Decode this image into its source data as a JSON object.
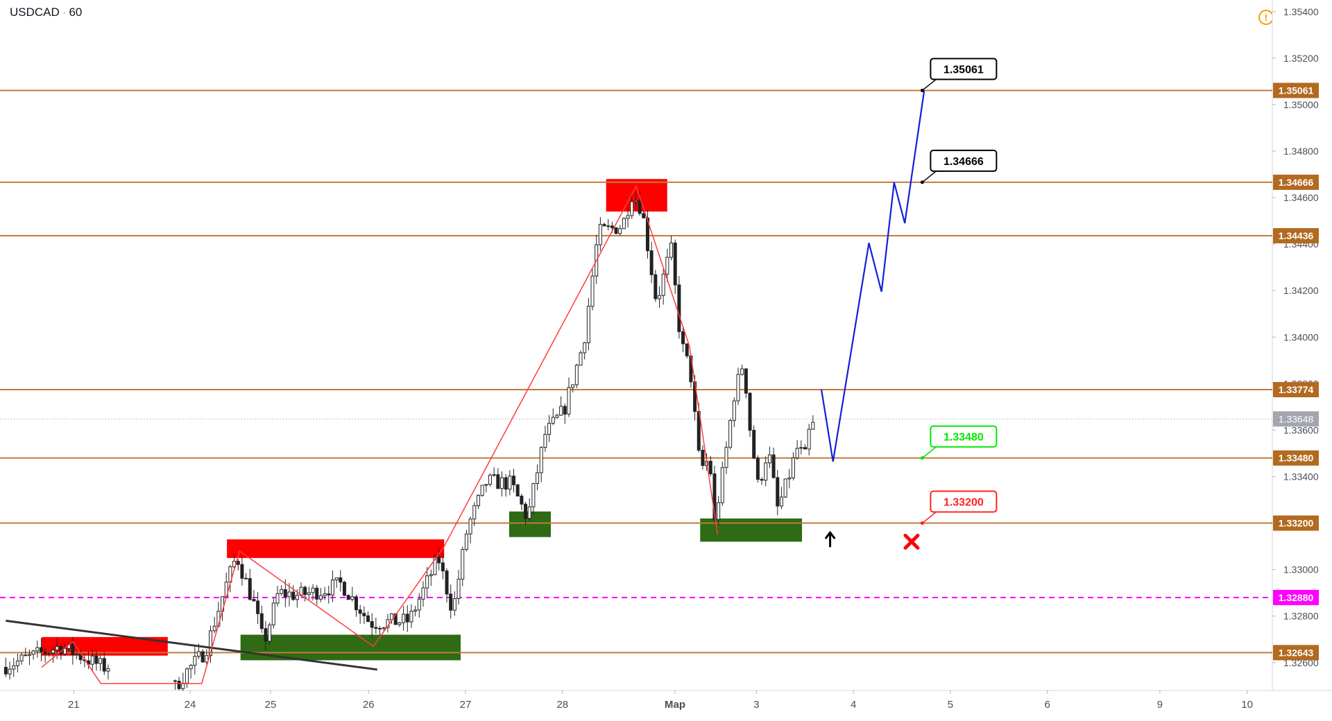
{
  "header": {
    "symbol": "USDCAD",
    "separator": "·",
    "interval": "60"
  },
  "icons": {
    "alert": "warning-icon",
    "settings": "gear-icon"
  },
  "colors": {
    "level_line": "#c07a3c",
    "level_tag": "#b26a1f",
    "magenta_line": "#ff00ff",
    "up_candle": "#ffffff",
    "down_candle": "#222222",
    "zig_zag": "#ff3b3b",
    "forecast": "#1020d8",
    "supply_zone": "#ff0000",
    "demand_zone": "#2e6b14",
    "trendline": "#333333"
  },
  "chart_data": {
    "type": "candlestick",
    "symbol": "USDCAD",
    "interval": "60",
    "ylim": [
      1.3248,
      1.3545
    ],
    "y_ticks": [
      "1.35400",
      "1.35200",
      "1.35000",
      "1.34800",
      "1.34600",
      "1.34400",
      "1.34200",
      "1.34000",
      "1.33800",
      "1.33600",
      "1.33400",
      "1.33200",
      "1.33000",
      "1.32800",
      "1.32600"
    ],
    "x_ticks": [
      {
        "label": "21",
        "t": 0.7
      },
      {
        "label": "24",
        "t": 1.9
      },
      {
        "label": "25",
        "t": 2.73
      },
      {
        "label": "26",
        "t": 3.74
      },
      {
        "label": "27",
        "t": 4.74
      },
      {
        "label": "28",
        "t": 5.74
      },
      {
        "label": "Мар",
        "t": 6.9
      },
      {
        "label": "3",
        "t": 7.74
      },
      {
        "label": "4",
        "t": 8.74
      },
      {
        "label": "5",
        "t": 9.74
      },
      {
        "label": "6",
        "t": 10.74
      },
      {
        "label": "9",
        "t": 11.9
      },
      {
        "label": "10",
        "t": 12.8
      }
    ],
    "t_range": [
      -0.06,
      13.06
    ],
    "levels": [
      {
        "value": 1.35061,
        "label": "1.35061",
        "style": "solid"
      },
      {
        "value": 1.34666,
        "label": "1.34666",
        "style": "solid"
      },
      {
        "value": 1.34436,
        "label": "1.34436",
        "style": "solid"
      },
      {
        "value": 1.33774,
        "label": "1.33774",
        "style": "solid"
      },
      {
        "value": 1.3348,
        "label": "1.33480",
        "style": "solid"
      },
      {
        "value": 1.332,
        "label": "1.33200",
        "style": "solid"
      },
      {
        "value": 1.3288,
        "label": "1.32880",
        "style": "dashed-magenta"
      },
      {
        "value": 1.32643,
        "label": "1.32643",
        "style": "solid"
      }
    ],
    "current_price": {
      "value": 1.33648,
      "label": "1.33648"
    },
    "callouts": [
      {
        "label": "1.35061",
        "t": 9.45,
        "value": 1.35061,
        "color": "#000000"
      },
      {
        "label": "1.34666",
        "t": 9.45,
        "value": 1.34666,
        "color": "#000000"
      },
      {
        "label": "1.33480",
        "t": 9.45,
        "value": 1.3348,
        "color": "#00e600"
      },
      {
        "label": "1.33200",
        "t": 9.45,
        "value": 1.332,
        "color": "#ff2020"
      }
    ],
    "supply_zones": [
      {
        "t0": 0.37,
        "t1": 1.67,
        "v0": 1.3263,
        "v1": 1.3271
      },
      {
        "t0": 2.28,
        "t1": 4.52,
        "v0": 1.3305,
        "v1": 1.3313
      },
      {
        "t0": 6.19,
        "t1": 6.82,
        "v0": 1.3454,
        "v1": 1.3468
      }
    ],
    "demand_zones": [
      {
        "t0": 2.42,
        "t1": 4.69,
        "v0": 1.3261,
        "v1": 1.3272
      },
      {
        "t0": 5.19,
        "t1": 5.62,
        "v0": 1.3314,
        "v1": 1.3325
      },
      {
        "t0": 7.16,
        "t1": 8.21,
        "v0": 1.3312,
        "v1": 1.3322
      }
    ],
    "trendline": [
      {
        "t": 0.0,
        "v": 1.3278
      },
      {
        "t": 3.83,
        "v": 1.3257
      }
    ],
    "zigzag": [
      {
        "t": 0.37,
        "v": 1.3258
      },
      {
        "t": 0.69,
        "v": 1.3269
      },
      {
        "t": 0.98,
        "v": 1.3251
      },
      {
        "t": 2.02,
        "v": 1.3251
      },
      {
        "t": 2.41,
        "v": 1.3308
      },
      {
        "t": 3.79,
        "v": 1.3267
      },
      {
        "t": 4.52,
        "v": 1.331
      },
      {
        "t": 6.5,
        "v": 1.3465
      },
      {
        "t": 7.05,
        "v": 1.3396
      },
      {
        "t": 7.34,
        "v": 1.3315
      }
    ],
    "forecast_path": [
      {
        "t": 8.41,
        "v": 1.33775
      },
      {
        "t": 8.53,
        "v": 1.33465
      },
      {
        "t": 8.9,
        "v": 1.34405
      },
      {
        "t": 9.03,
        "v": 1.34195
      },
      {
        "t": 9.16,
        "v": 1.34665
      },
      {
        "t": 9.27,
        "v": 1.3449
      },
      {
        "t": 9.47,
        "v": 1.3506
      }
    ],
    "markers": [
      {
        "type": "up-arrow",
        "t": 8.5,
        "v": 1.3313,
        "color": "#000000"
      },
      {
        "type": "cross",
        "t": 9.34,
        "v": 1.3312,
        "color": "#ff0000"
      }
    ],
    "anchors": [
      {
        "t": 0.0,
        "v": 1.3258
      },
      {
        "t": 0.6,
        "v": 1.3267
      },
      {
        "t": 1.05,
        "v": 1.3258
      },
      {
        "t": 1.5,
        "v": 1.3264
      },
      {
        "t": 1.78,
        "v": 1.3249
      },
      {
        "t": 1.9,
        "v": 1.3256
      },
      {
        "t": 2.1,
        "v": 1.3265
      },
      {
        "t": 2.3,
        "v": 1.3292
      },
      {
        "t": 2.42,
        "v": 1.3306
      },
      {
        "t": 2.6,
        "v": 1.3285
      },
      {
        "t": 2.7,
        "v": 1.3268
      },
      {
        "t": 2.85,
        "v": 1.329
      },
      {
        "t": 3.05,
        "v": 1.3289
      },
      {
        "t": 3.3,
        "v": 1.3291
      },
      {
        "t": 3.5,
        "v": 1.3294
      },
      {
        "t": 3.8,
        "v": 1.3277
      },
      {
        "t": 4.2,
        "v": 1.3278
      },
      {
        "t": 4.5,
        "v": 1.3305
      },
      {
        "t": 4.65,
        "v": 1.3282
      },
      {
        "t": 4.8,
        "v": 1.3318
      },
      {
        "t": 5.0,
        "v": 1.3338
      },
      {
        "t": 5.25,
        "v": 1.3337
      },
      {
        "t": 5.42,
        "v": 1.3322
      },
      {
        "t": 5.6,
        "v": 1.3358
      },
      {
        "t": 5.8,
        "v": 1.3369
      },
      {
        "t": 6.0,
        "v": 1.3398
      },
      {
        "t": 6.15,
        "v": 1.3445
      },
      {
        "t": 6.4,
        "v": 1.3448
      },
      {
        "t": 6.5,
        "v": 1.3462
      },
      {
        "t": 6.6,
        "v": 1.3455
      },
      {
        "t": 6.75,
        "v": 1.3415
      },
      {
        "t": 6.9,
        "v": 1.3438
      },
      {
        "t": 7.0,
        "v": 1.3398
      },
      {
        "t": 7.1,
        "v": 1.3385
      },
      {
        "t": 7.2,
        "v": 1.3343
      },
      {
        "t": 7.3,
        "v": 1.3348
      },
      {
        "t": 7.34,
        "v": 1.3318
      },
      {
        "t": 7.45,
        "v": 1.3346
      },
      {
        "t": 7.55,
        "v": 1.3375
      },
      {
        "t": 7.65,
        "v": 1.339
      },
      {
        "t": 7.7,
        "v": 1.3365
      },
      {
        "t": 7.8,
        "v": 1.3335
      },
      {
        "t": 7.9,
        "v": 1.3352
      },
      {
        "t": 8.0,
        "v": 1.3326
      },
      {
        "t": 8.1,
        "v": 1.3338
      },
      {
        "t": 8.2,
        "v": 1.3352
      },
      {
        "t": 8.3,
        "v": 1.3348
      },
      {
        "t": 8.33,
        "v": 1.3362
      }
    ]
  }
}
